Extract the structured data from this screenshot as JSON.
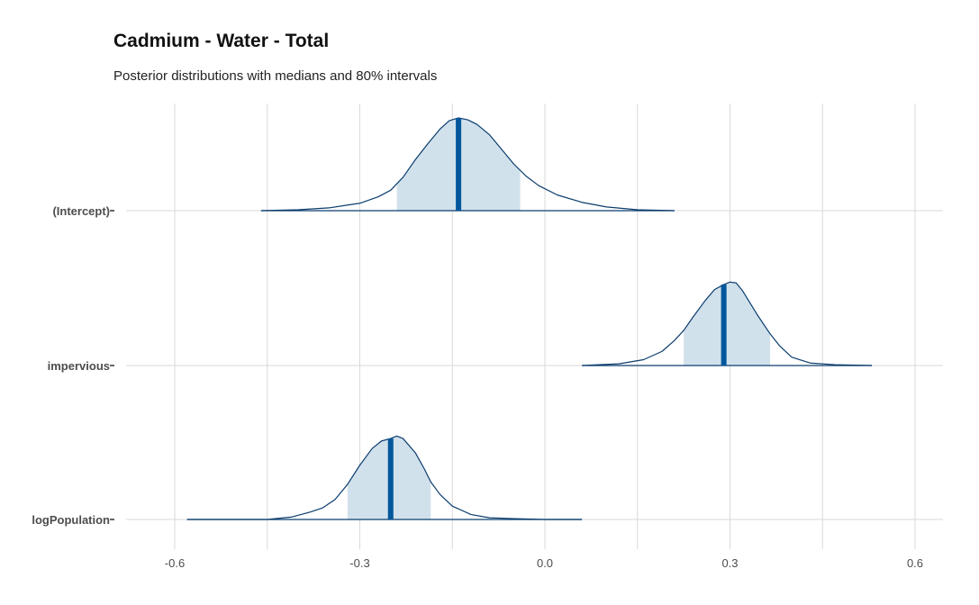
{
  "chart_data": {
    "type": "area",
    "title": "Cadmium - Water - Total",
    "subtitle": "Posterior distributions with medians and 80% intervals",
    "xlabel": "",
    "ylabel": "",
    "xlim": [
      -0.6,
      0.6
    ],
    "x_ticks": [
      -0.6,
      -0.3,
      0.0,
      0.3,
      0.6
    ],
    "x_tick_labels": [
      "-0.6",
      "-0.3",
      "0.0",
      "0.3",
      "0.6"
    ],
    "grid": true,
    "colors": {
      "outline": "#0b3c6e",
      "interval_fill": "#d1e1ec",
      "median": "#00579c",
      "grid": "#d9d9d9"
    },
    "series": [
      {
        "name": "(Intercept)",
        "median": -0.14,
        "interval_80": [
          -0.24,
          -0.04
        ],
        "range": [
          -0.46,
          0.21
        ],
        "density_x": [
          -0.46,
          -0.4,
          -0.35,
          -0.3,
          -0.27,
          -0.25,
          -0.23,
          -0.21,
          -0.19,
          -0.17,
          -0.155,
          -0.14,
          -0.125,
          -0.11,
          -0.09,
          -0.07,
          -0.05,
          -0.03,
          -0.01,
          0.02,
          0.06,
          0.1,
          0.15,
          0.21
        ],
        "density_y": [
          0.0,
          0.01,
          0.03,
          0.08,
          0.15,
          0.22,
          0.36,
          0.55,
          0.72,
          0.88,
          0.97,
          1.0,
          0.98,
          0.93,
          0.82,
          0.66,
          0.5,
          0.37,
          0.27,
          0.17,
          0.09,
          0.04,
          0.01,
          0.0
        ]
      },
      {
        "name": "impervious",
        "median": 0.29,
        "interval_80": [
          0.225,
          0.365
        ],
        "range": [
          0.06,
          0.53
        ],
        "density_x": [
          0.06,
          0.12,
          0.16,
          0.19,
          0.21,
          0.225,
          0.24,
          0.26,
          0.275,
          0.29,
          0.3,
          0.31,
          0.32,
          0.33,
          0.345,
          0.365,
          0.38,
          0.4,
          0.43,
          0.47,
          0.53
        ],
        "density_y": [
          0.0,
          0.02,
          0.07,
          0.17,
          0.3,
          0.42,
          0.58,
          0.78,
          0.91,
          0.97,
          1.0,
          0.99,
          0.9,
          0.78,
          0.6,
          0.38,
          0.24,
          0.1,
          0.03,
          0.01,
          0.0
        ],
        "peak_scale": 0.9
      },
      {
        "name": "logPopulation",
        "median": -0.25,
        "interval_80": [
          -0.32,
          -0.185
        ],
        "range": [
          -0.58,
          0.06
        ],
        "density_x": [
          -0.58,
          -0.45,
          -0.41,
          -0.38,
          -0.36,
          -0.34,
          -0.32,
          -0.3,
          -0.28,
          -0.265,
          -0.25,
          -0.24,
          -0.23,
          -0.21,
          -0.195,
          -0.185,
          -0.17,
          -0.15,
          -0.12,
          -0.09,
          -0.05,
          0.0,
          0.06
        ],
        "density_y": [
          0.0,
          0.0,
          0.03,
          0.09,
          0.14,
          0.24,
          0.42,
          0.65,
          0.85,
          0.94,
          0.97,
          1.0,
          0.97,
          0.8,
          0.6,
          0.45,
          0.3,
          0.16,
          0.06,
          0.02,
          0.01,
          0.0,
          0.0
        ],
        "peak_scale": 0.9
      }
    ]
  }
}
